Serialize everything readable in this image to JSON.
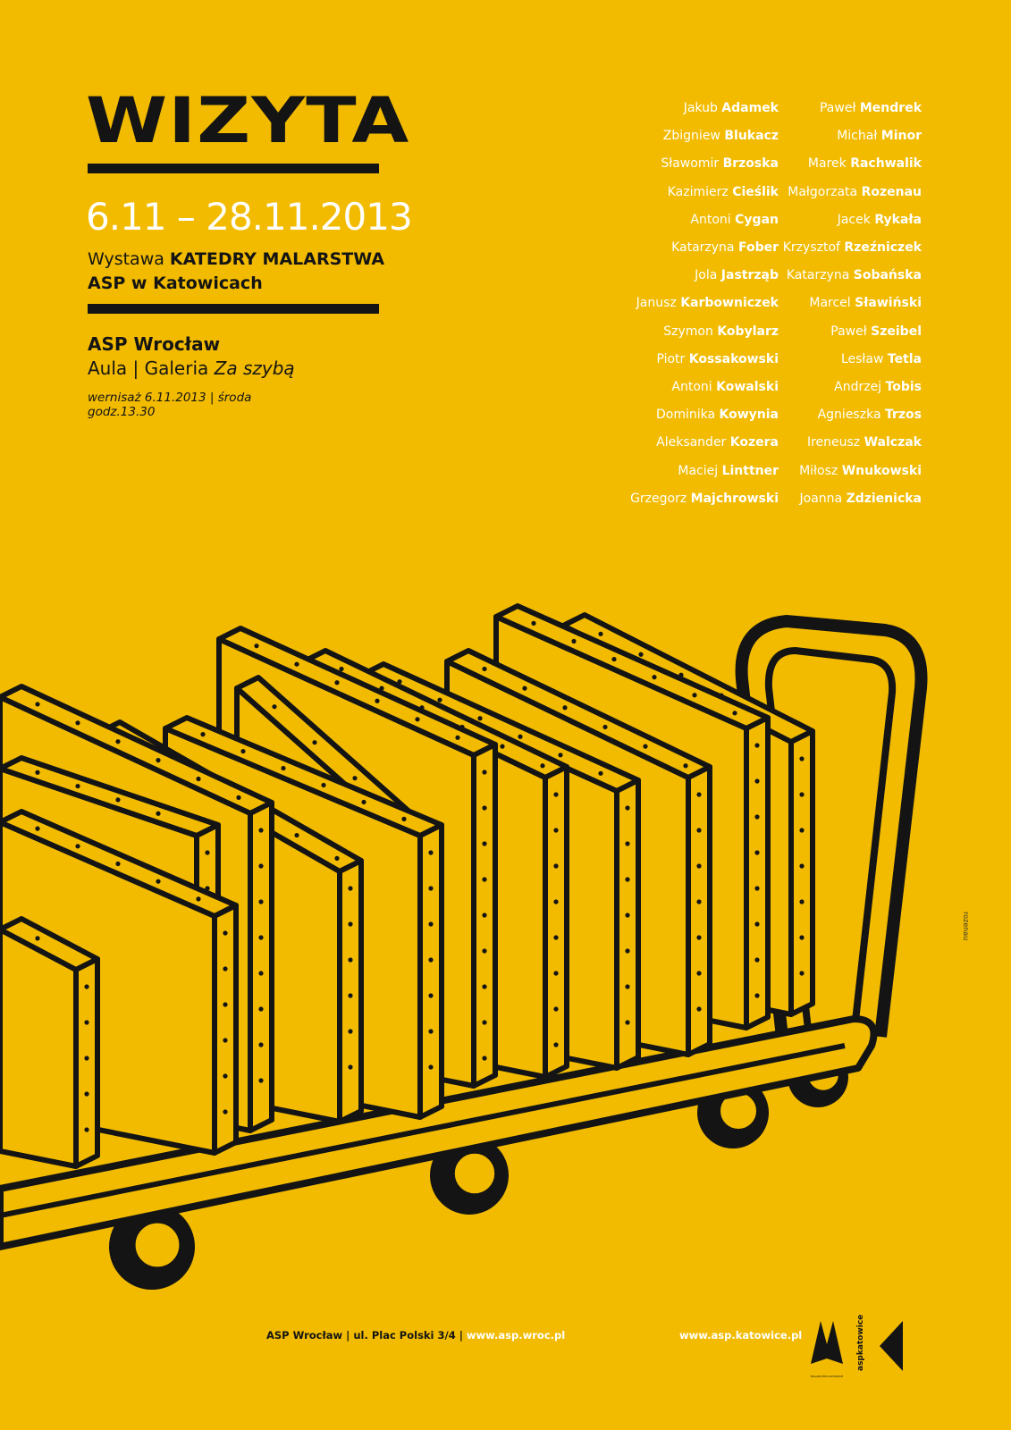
{
  "header": {
    "title": "WIZYTA",
    "dates": "6.11 – 28.11.2013",
    "subtitle_prefix": "Wystawa ",
    "subtitle_bold": "KATEDRY MALARSTWA",
    "subtitle_line2": "ASP w Katowicach"
  },
  "venue": {
    "name": "ASP Wrocław",
    "place_prefix": "Aula | Galeria ",
    "place_italic": "Za szybą",
    "opening_line1": "wernisaż 6.11.2013 | środa",
    "opening_line2": "godz.13.30"
  },
  "artists_left": [
    {
      "first": "Jakub",
      "last": "Adamek"
    },
    {
      "first": "Zbigniew",
      "last": "Blukacz"
    },
    {
      "first": "Sławomir",
      "last": "Brzoska"
    },
    {
      "first": "Kazimierz",
      "last": "Cieślik"
    },
    {
      "first": "Antoni",
      "last": "Cygan"
    },
    {
      "first": "Katarzyna",
      "last": "Fober"
    },
    {
      "first": "Jola",
      "last": "Jastrząb"
    },
    {
      "first": "Janusz",
      "last": "Karbowniczek"
    },
    {
      "first": "Szymon",
      "last": "Kobylarz"
    },
    {
      "first": "Piotr",
      "last": "Kossakowski"
    },
    {
      "first": "Antoni",
      "last": "Kowalski"
    },
    {
      "first": "Dominika",
      "last": "Kowynia"
    },
    {
      "first": "Aleksander",
      "last": "Kozera"
    },
    {
      "first": "Maciej",
      "last": "Linttner"
    },
    {
      "first": "Grzegorz",
      "last": "Majchrowski"
    }
  ],
  "artists_right": [
    {
      "first": "Paweł",
      "last": "Mendrek"
    },
    {
      "first": "Michał",
      "last": "Minor"
    },
    {
      "first": "Marek",
      "last": "Rachwalik"
    },
    {
      "first": "Małgorzata",
      "last": "Rozenau"
    },
    {
      "first": "Jacek",
      "last": "Rykała"
    },
    {
      "first": "Krzysztof",
      "last": "Rzeźniczek"
    },
    {
      "first": "Katarzyna",
      "last": "Sobańska"
    },
    {
      "first": "Marcel",
      "last": "Sławiński"
    },
    {
      "first": "Paweł",
      "last": "Szeibel"
    },
    {
      "first": "Lesław",
      "last": "Tetla"
    },
    {
      "first": "Andrzej",
      "last": "Tobis"
    },
    {
      "first": "Agnieszka",
      "last": "Trzos"
    },
    {
      "first": "Ireneusz",
      "last": "Walczak"
    },
    {
      "first": "Miłosz",
      "last": "Wnukowski"
    },
    {
      "first": "Joanna",
      "last": "Zdzienicka"
    }
  ],
  "footer": {
    "address": "ASP Wrocław | ul. Plac Polski 3/4 | ",
    "url_wroc": "www.asp.wroc.pl",
    "url_kat": "www.asp.katowice.pl",
    "logo_malarstwo": "MALARSTWO KATOWICE",
    "logo_asp": "aspkatowice"
  },
  "credit": "rozenau",
  "colors": {
    "background": "#f2bb00",
    "ink": "#141414",
    "text_light": "#ffffff"
  }
}
